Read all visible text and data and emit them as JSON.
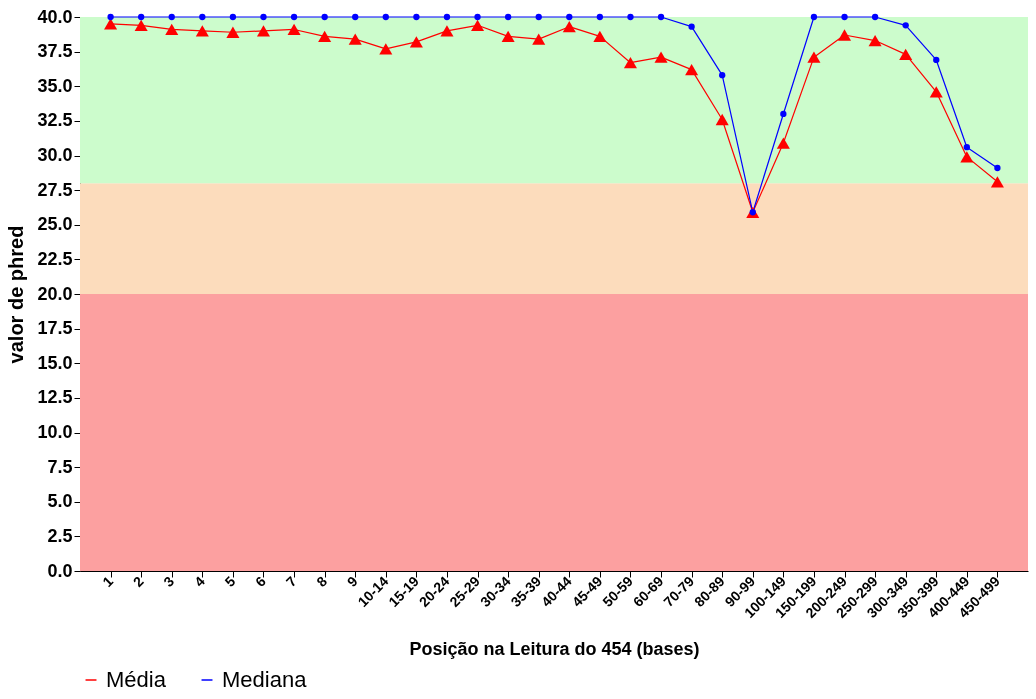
{
  "chart_data": {
    "type": "line",
    "xlabel": "Posição na Leitura do 454 (bases)",
    "ylabel": "valor de phred",
    "categories": [
      "1",
      "2",
      "3",
      "4",
      "5",
      "6",
      "7",
      "8",
      "9",
      "10-14",
      "15-19",
      "20-24",
      "25-29",
      "30-34",
      "35-39",
      "40-44",
      "45-49",
      "50-59",
      "60-69",
      "70-79",
      "80-89",
      "90-99",
      "100-149",
      "150-199",
      "200-249",
      "250-299",
      "300-349",
      "350-399",
      "400-449",
      "450-499"
    ],
    "series": [
      {
        "name": "Média",
        "color": "#ff0000",
        "marker": "triangle",
        "values": [
          39.5,
          39.4,
          39.1,
          39.0,
          38.9,
          39.0,
          39.1,
          38.6,
          38.4,
          37.7,
          38.2,
          39.0,
          39.4,
          38.6,
          38.4,
          39.3,
          38.6,
          36.7,
          37.1,
          36.2,
          32.6,
          25.9,
          30.9,
          37.1,
          38.7,
          38.3,
          37.3,
          34.6,
          29.9,
          28.1
        ]
      },
      {
        "name": "Mediana",
        "color": "#0000ff",
        "marker": "circle",
        "values": [
          40,
          40,
          40,
          40,
          40,
          40,
          40,
          40,
          40,
          40,
          40,
          40,
          40,
          40,
          40,
          40,
          40,
          40,
          40,
          39.3,
          35.8,
          25.9,
          33.0,
          40,
          40,
          40,
          39.4,
          36.9,
          30.6,
          29.1
        ]
      }
    ],
    "ylim": [
      0,
      40
    ],
    "yticks": [
      {
        "value": 0,
        "label": "0.0"
      },
      {
        "value": 2.5,
        "label": "2.5"
      },
      {
        "value": 5,
        "label": "5.0"
      },
      {
        "value": 7.5,
        "label": "7.5"
      },
      {
        "value": 10,
        "label": "10.0"
      },
      {
        "value": 12.5,
        "label": "12.5"
      },
      {
        "value": 15,
        "label": "15.0"
      },
      {
        "value": 17.5,
        "label": "17.5"
      },
      {
        "value": 20,
        "label": "20.0"
      },
      {
        "value": 22.5,
        "label": "22.5"
      },
      {
        "value": 25,
        "label": "25.0"
      },
      {
        "value": 27.5,
        "label": "27.5"
      },
      {
        "value": 30,
        "label": "30.0"
      },
      {
        "value": 32.5,
        "label": "32.5"
      },
      {
        "value": 35,
        "label": "35.0"
      },
      {
        "value": 37.5,
        "label": "37.5"
      },
      {
        "value": 40,
        "label": "40.0"
      }
    ],
    "bands": [
      {
        "axis": "y",
        "from": 0,
        "to": 20,
        "color": "#fca0a0"
      },
      {
        "axis": "y",
        "from": 20,
        "to": 28,
        "color": "#fcdcbc"
      },
      {
        "axis": "y",
        "from": 28,
        "to": 40,
        "color": "#ccfccc"
      }
    ],
    "grid": false,
    "legend": "bottom left",
    "line_style": "solid"
  }
}
